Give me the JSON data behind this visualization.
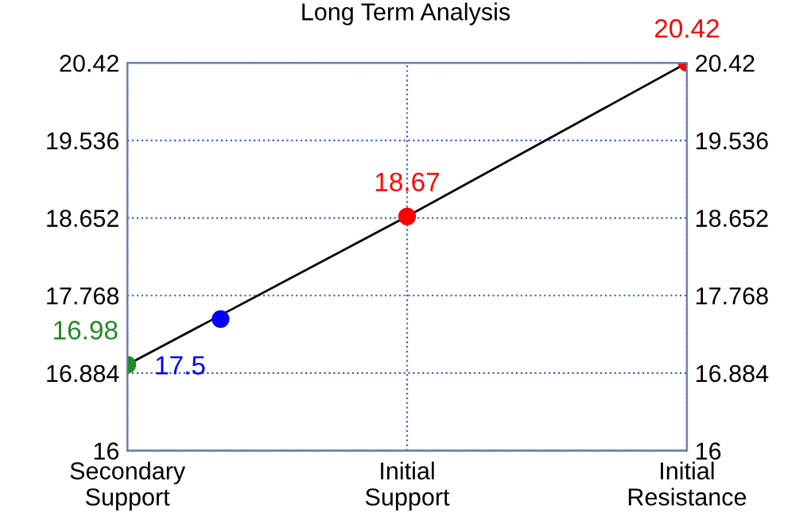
{
  "chart_data": {
    "type": "line",
    "title": "Long Term Analysis",
    "categories": [
      "Secondary\nSupport",
      null,
      null,
      "Initial\nSupport",
      null,
      null,
      "Initial\nResistance"
    ],
    "ylim": [
      16,
      20.42
    ],
    "yticks": [
      16,
      16.884,
      17.768,
      18.652,
      19.536,
      20.42
    ],
    "y2lim": [
      16,
      20.42
    ],
    "y2ticks": [
      16,
      16.884,
      17.768,
      18.652,
      19.536,
      20.42
    ],
    "grid": true,
    "marker": "circle",
    "line_style": "solid",
    "series": [
      {
        "values": [
          16.98,
          null,
          null,
          18.67,
          null,
          null,
          20.42
        ],
        "color": "#000000",
        "colors": [
          "#228b22",
          null,
          null,
          "#ff0000",
          null,
          null,
          "#ff0000"
        ],
        "value_labels": [
          "16.98",
          null,
          null,
          "18.67",
          null,
          null,
          "20.42"
        ]
      },
      {
        "type": "scatter",
        "values": [
          null,
          17.5,
          null,
          null,
          null,
          null,
          null
        ],
        "color": "#0000ff",
        "value_labels": [
          null,
          "17.5",
          null,
          null,
          null,
          null,
          null
        ]
      }
    ]
  }
}
